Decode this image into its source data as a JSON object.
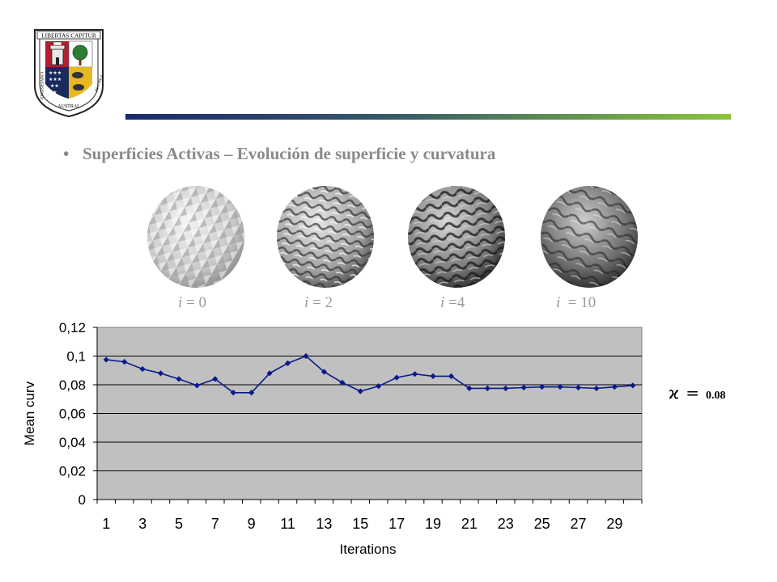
{
  "header": {
    "logo": {
      "motto": "LIBERTAS CAPITUR",
      "left_ring_text": "UNIVERSIDAD",
      "bottom_ring_text": "AUSTRAL",
      "right_ring_text": "DE CHILE"
    },
    "rule_colors": [
      "#1a2a6c",
      "#8cc43c"
    ]
  },
  "slide": {
    "bullet": "Superficies Activas – Evolución de superficie y curvatura"
  },
  "spheres": [
    {
      "var": "i",
      "text": " = 0"
    },
    {
      "var": "i",
      "text": " = 2"
    },
    {
      "var": "i",
      "text": " =4"
    },
    {
      "var": "i",
      "text": "  = 10"
    }
  ],
  "annotation": {
    "symbol": "ϰ",
    "equals": "=",
    "value": "0.08"
  },
  "chart_data": {
    "type": "line",
    "xlabel": "Iterations",
    "ylabel": "Mean curv",
    "x": [
      1,
      2,
      3,
      4,
      5,
      6,
      7,
      8,
      9,
      10,
      11,
      12,
      13,
      14,
      15,
      16,
      17,
      18,
      19,
      20,
      21,
      22,
      23,
      24,
      25,
      26,
      27,
      28,
      29,
      30
    ],
    "values": [
      0.0975,
      0.096,
      0.091,
      0.088,
      0.084,
      0.0795,
      0.084,
      0.0745,
      0.0745,
      0.088,
      0.095,
      0.1,
      0.089,
      0.0815,
      0.0755,
      0.079,
      0.085,
      0.0875,
      0.086,
      0.086,
      0.0775,
      0.0775,
      0.0775,
      0.078,
      0.0785,
      0.0785,
      0.078,
      0.0775,
      0.0785,
      0.0795
    ],
    "xtick_labels": [
      "1",
      "3",
      "5",
      "7",
      "9",
      "11",
      "13",
      "15",
      "17",
      "19",
      "21",
      "23",
      "25",
      "27",
      "29"
    ],
    "ytick_labels": [
      "0",
      "0,02",
      "0,04",
      "0,06",
      "0,08",
      "0,1",
      "0,12"
    ],
    "ylim": [
      0,
      0.12
    ],
    "grid": true,
    "colors": {
      "plot_bg": "#c0c0c0",
      "line": "#0a1a8c",
      "marker": "#0a1a8c"
    }
  }
}
